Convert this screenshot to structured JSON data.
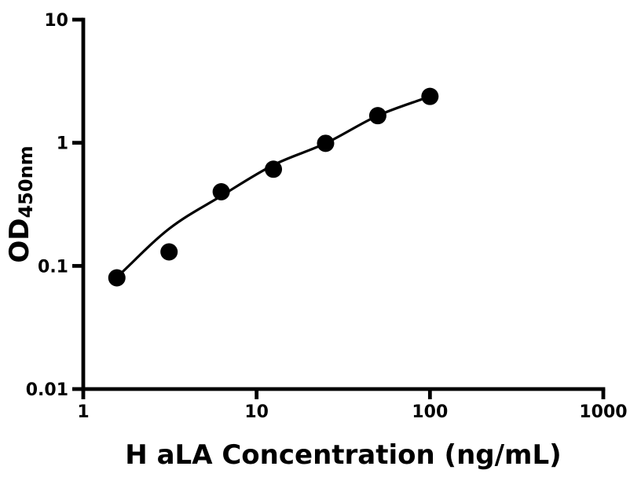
{
  "figure": {
    "background": "#ffffff",
    "ink_color": "#000000"
  },
  "chart_data": {
    "type": "scatter",
    "x_label": "H aLA Concentration (ng/mL)",
    "y_label_main": "OD",
    "y_label_sub": "450nm",
    "x_scale": "log10",
    "y_scale": "log10",
    "x_range": [
      1,
      1000
    ],
    "y_range": [
      0.01,
      10
    ],
    "x_ticks": [
      {
        "value": 1,
        "label": "1"
      },
      {
        "value": 10,
        "label": "10"
      },
      {
        "value": 100,
        "label": "100"
      },
      {
        "value": 1000,
        "label": "1000"
      }
    ],
    "y_ticks": [
      {
        "value": 0.01,
        "label": "0.01"
      },
      {
        "value": 0.1,
        "label": "0.1"
      },
      {
        "value": 1,
        "label": "1"
      },
      {
        "value": 10,
        "label": "10"
      }
    ],
    "grid": false,
    "legend": false,
    "series": [
      {
        "name": "standard-points",
        "marker": "filled-circle",
        "marker_radius_px": 11,
        "color": "#000000",
        "points": [
          {
            "x": 1.5625,
            "od": 0.08
          },
          {
            "x": 3.125,
            "od": 0.13
          },
          {
            "x": 6.25,
            "od": 0.4
          },
          {
            "x": 12.5,
            "od": 0.61
          },
          {
            "x": 25,
            "od": 0.99
          },
          {
            "x": 50,
            "od": 1.66
          },
          {
            "x": 100,
            "od": 2.38
          }
        ]
      }
    ],
    "fit_curve": {
      "name": "four-parameter-fit",
      "color": "#000000",
      "stroke_width_px": 3.2,
      "points": [
        {
          "x": 1.5625,
          "od": 0.081
        },
        {
          "x": 3.125,
          "od": 0.2
        },
        {
          "x": 6.25,
          "od": 0.37
        },
        {
          "x": 12.5,
          "od": 0.66
        },
        {
          "x": 25,
          "od": 0.99
        },
        {
          "x": 50,
          "od": 1.66
        },
        {
          "x": 100,
          "od": 2.38
        }
      ]
    }
  }
}
